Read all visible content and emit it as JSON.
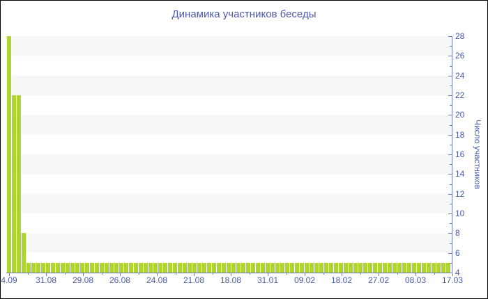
{
  "title": "Динамика участников беседы",
  "colors": {
    "bar": "#aed531",
    "axis_line": "#6b79b8",
    "text": "#4a5aad",
    "stripe": "#f7f7f7",
    "background": "#ffffff",
    "frame_border": "#000000"
  },
  "chart_data": {
    "type": "bar",
    "title": "Динамика участников беседы",
    "xlabel": "",
    "ylabel": "Число участников",
    "ylim": [
      4,
      28
    ],
    "y_major_ticks": [
      4,
      6,
      8,
      10,
      12,
      14,
      16,
      18,
      20,
      22,
      24,
      26,
      28
    ],
    "y_minor_step": 1,
    "grid": "alternating horizontal bands, 2 units tall, light gray on white",
    "legend": "none",
    "y_axis_side": "right",
    "x_tick_labels": [
      "4.09",
      "31.08",
      "29.08",
      "26.08",
      "24.08",
      "21.08",
      "18.08",
      "31.01",
      "09.02",
      "18.02",
      "27.02",
      "08.03",
      "17.03"
    ],
    "values": [
      28,
      22,
      22,
      8,
      5,
      5,
      5,
      5,
      5,
      5,
      5,
      5,
      5,
      5,
      5,
      5,
      5,
      5,
      5,
      5,
      5,
      5,
      5,
      5,
      5,
      5,
      5,
      5,
      5,
      5,
      5,
      5,
      5,
      5,
      5,
      5,
      5,
      5,
      5,
      5,
      5,
      5,
      5,
      5,
      5,
      5,
      5,
      5,
      5,
      5,
      5,
      5,
      5,
      5,
      5,
      5,
      5,
      5,
      5,
      5,
      5,
      5,
      5,
      5,
      5,
      5,
      5,
      5,
      5,
      5,
      5,
      5,
      5,
      5,
      5,
      5,
      5,
      5,
      5,
      5,
      5,
      5,
      5,
      5,
      5,
      5,
      5,
      5,
      5,
      5,
      5
    ]
  }
}
